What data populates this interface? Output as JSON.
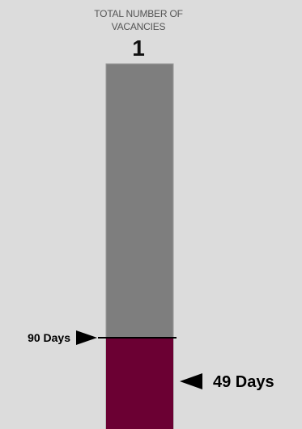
{
  "header": {
    "title_line1": "TOTAL NUMBER OF",
    "title_line2": "VACANCIES",
    "count": "1"
  },
  "colors": {
    "background": "#dcdcdc",
    "bar_total": "#7e7e7e",
    "bar_elapsed": "#6b0033",
    "marker": "#000000"
  },
  "chart_data": {
    "type": "bar",
    "orientation": "vertical",
    "categories": [
      ""
    ],
    "series": [
      {
        "values": [
          49
        ],
        "color": "#6b0033"
      }
    ],
    "ylim": [
      0,
      360
    ],
    "threshold": {
      "value": 90,
      "label": "90 Days",
      "marker": "right-arrow"
    },
    "value_marker": {
      "value": 49,
      "label": "49 Days",
      "marker": "left-arrow"
    },
    "grid": false,
    "legend": "none"
  }
}
